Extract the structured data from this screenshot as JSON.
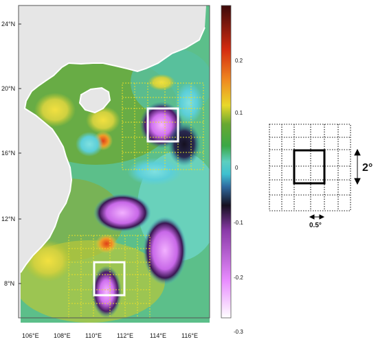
{
  "map": {
    "lat_ticks": [
      "24°N",
      "20°N",
      "16°N",
      "12°N",
      "8°N"
    ],
    "lon_ticks": [
      "106°E",
      "108°E",
      "110°E",
      "112°E",
      "114°E",
      "116°E"
    ],
    "lat_range": [
      5,
      25.5
    ],
    "lon_range": [
      105.5,
      117.5
    ],
    "land_color": "#e6e6e6",
    "ocean_base_color": "#5cbf8a",
    "highlight_boxes": [
      {
        "lon": [
          113,
          115
        ],
        "lat": [
          17,
          19
        ]
      },
      {
        "lon": [
          109.5,
          111.5
        ],
        "lat": [
          7,
          9
        ]
      }
    ],
    "dotted_grid_color": "#e8e02a"
  },
  "colorbar": {
    "ticks": [
      "0.2",
      "0.1",
      "0",
      "-0.1",
      "-0.2",
      "-0.3"
    ],
    "range": [
      -0.3,
      0.3
    ],
    "colors": [
      "#ffffff",
      "#e070ff",
      "#8b3aa8",
      "#1a1030",
      "#3fb5c8",
      "#6fd8d0",
      "#3aa846",
      "#c8c82a",
      "#f7e020",
      "#f08a20",
      "#d42a10",
      "#4a0a0a"
    ]
  },
  "scheme": {
    "label_2deg": "2°",
    "label_halfdeg": "0.5°"
  }
}
